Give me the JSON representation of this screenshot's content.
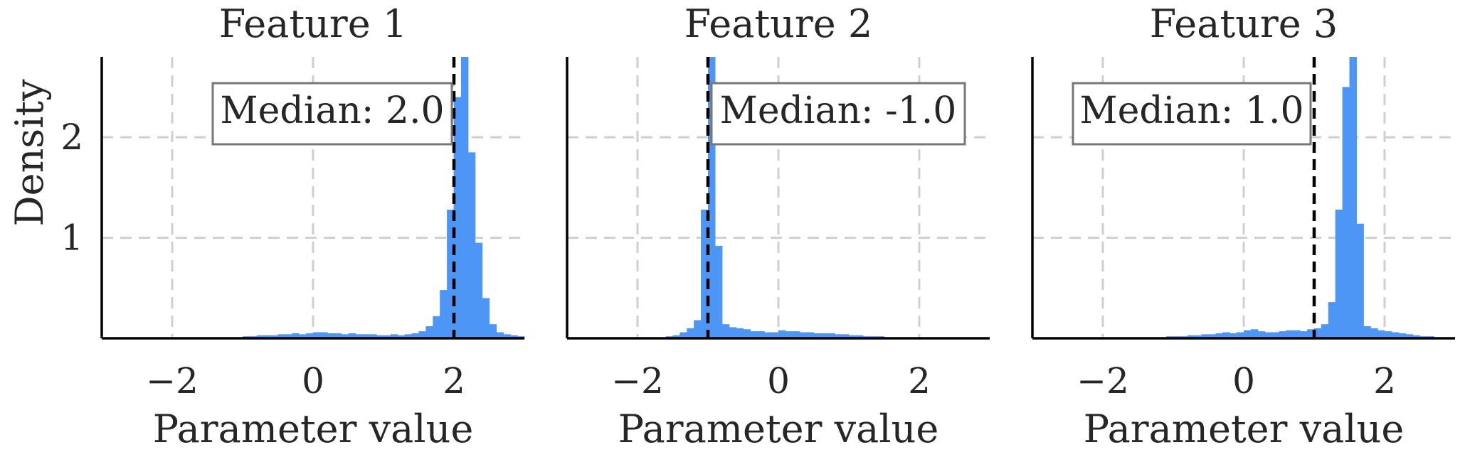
{
  "figure": {
    "ylabel": "Density",
    "xlabel": "Parameter value",
    "accent_color": "#4d96f5",
    "median_line_color": "#000000"
  },
  "chart_data": [
    {
      "type": "bar",
      "title": "Feature 1",
      "xlabel": "Parameter value",
      "ylabel": "Density",
      "xlim": [
        -3.0,
        3.0
      ],
      "ylim": [
        0,
        2.8
      ],
      "xticks": [
        -2,
        0,
        2
      ],
      "xtick_labels": [
        "−2",
        "0",
        "2"
      ],
      "yticks": [
        1,
        2
      ],
      "ytick_labels": [
        "1",
        "2"
      ],
      "grid": true,
      "median": 2.0,
      "annotation": "Median: 2.0",
      "bin_width": 0.1,
      "bins_start": -1.3,
      "values": [
        0.01,
        0.01,
        0.01,
        0.02,
        0.02,
        0.03,
        0.03,
        0.03,
        0.04,
        0.04,
        0.05,
        0.04,
        0.05,
        0.06,
        0.06,
        0.05,
        0.05,
        0.04,
        0.05,
        0.04,
        0.04,
        0.04,
        0.03,
        0.03,
        0.04,
        0.03,
        0.04,
        0.05,
        0.07,
        0.12,
        0.22,
        0.48,
        1.28,
        2.4,
        2.8,
        1.85,
        0.95,
        0.4,
        0.14,
        0.06,
        0.04,
        0.03,
        0.02
      ]
    },
    {
      "type": "bar",
      "title": "Feature 2",
      "xlabel": "Parameter value",
      "ylabel": "",
      "xlim": [
        -3.0,
        3.0
      ],
      "ylim": [
        0,
        2.8
      ],
      "xticks": [
        -2,
        0,
        2
      ],
      "xtick_labels": [
        "−2",
        "0",
        "2"
      ],
      "yticks": [
        1,
        2
      ],
      "ytick_labels": [
        "",
        ""
      ],
      "grid": true,
      "median": -1.0,
      "annotation": "Median: -1.0",
      "bin_width": 0.1,
      "bins_start": -1.7,
      "values": [
        0.01,
        0.02,
        0.03,
        0.06,
        0.1,
        0.18,
        1.28,
        2.8,
        0.92,
        0.14,
        0.11,
        0.1,
        0.09,
        0.07,
        0.07,
        0.06,
        0.06,
        0.08,
        0.07,
        0.07,
        0.06,
        0.06,
        0.05,
        0.05,
        0.05,
        0.04,
        0.04,
        0.03,
        0.03,
        0.02,
        0.02,
        0.02,
        0.01,
        0.01
      ]
    },
    {
      "type": "bar",
      "title": "Feature 3",
      "xlabel": "Parameter value",
      "ylabel": "",
      "xlim": [
        -3.0,
        3.0
      ],
      "ylim": [
        0,
        2.8
      ],
      "xticks": [
        -2,
        0,
        2
      ],
      "xtick_labels": [
        "−2",
        "0",
        "2"
      ],
      "yticks": [
        1,
        2
      ],
      "ytick_labels": [
        "",
        ""
      ],
      "grid": true,
      "median": 1.0,
      "annotation": "Median: 1.0",
      "bin_width": 0.1,
      "bins_start": -1.3,
      "values": [
        0.01,
        0.01,
        0.02,
        0.02,
        0.02,
        0.03,
        0.03,
        0.04,
        0.04,
        0.05,
        0.06,
        0.05,
        0.06,
        0.08,
        0.09,
        0.07,
        0.06,
        0.06,
        0.07,
        0.08,
        0.08,
        0.07,
        0.09,
        0.1,
        0.14,
        0.36,
        1.28,
        2.5,
        2.8,
        1.14,
        0.12,
        0.1,
        0.08,
        0.07,
        0.06,
        0.05,
        0.04,
        0.03,
        0.02,
        0.02,
        0.01,
        0.01
      ]
    }
  ]
}
